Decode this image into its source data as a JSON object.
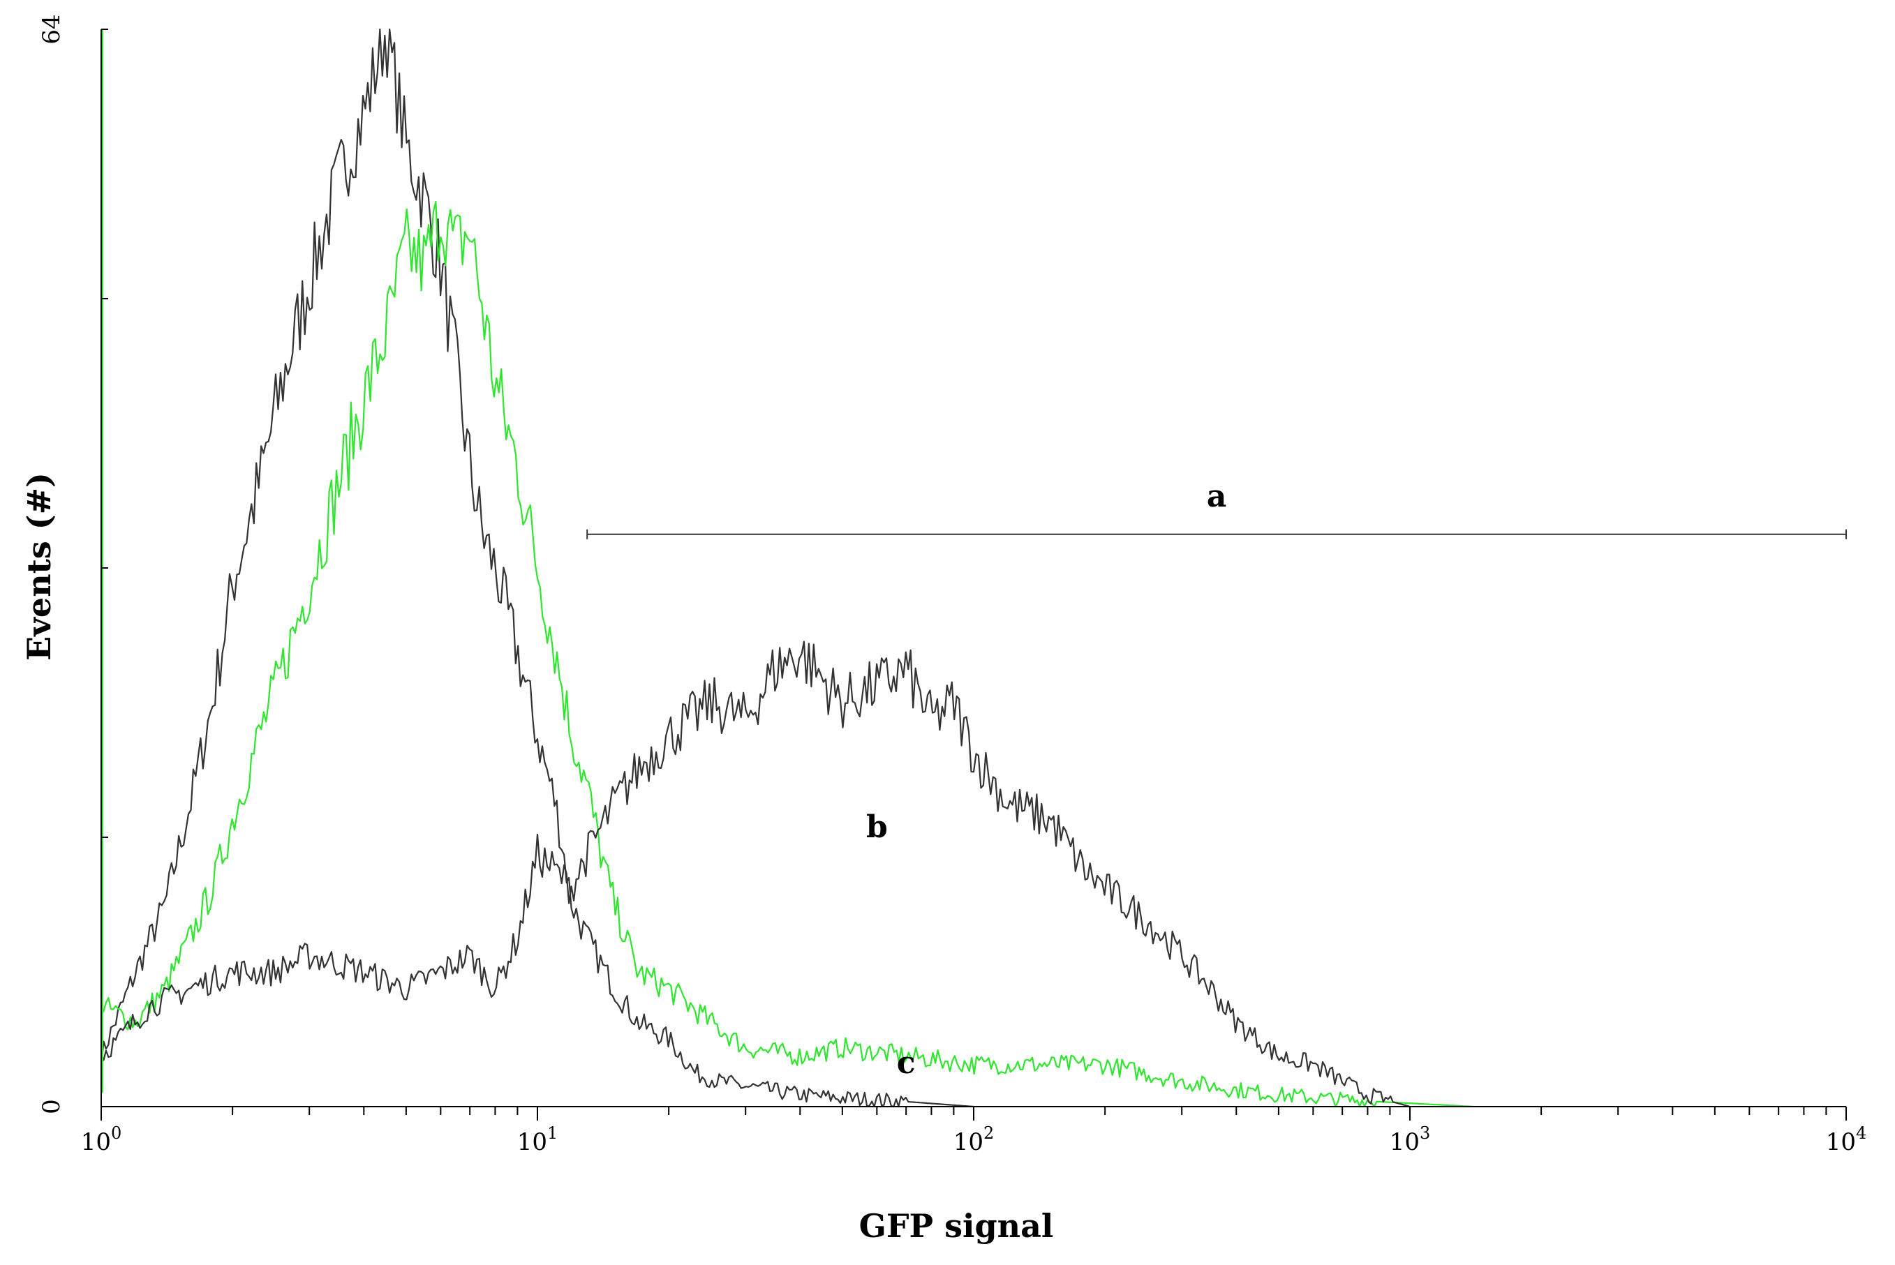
{
  "chart_data": {
    "type": "line",
    "xlabel": "GFP signal",
    "ylabel": "Events (#)",
    "x_scale": "log",
    "xlim": [
      1,
      10000
    ],
    "ylim": [
      0,
      64
    ],
    "y_ticks": [
      0,
      16,
      32,
      48,
      64
    ],
    "y_tick_labels": [
      "0",
      "",
      "",
      "",
      "64"
    ],
    "x_ticks": [
      1,
      10,
      100,
      1000,
      10000
    ],
    "x_tick_labels": [
      {
        "base": "10",
        "exp": "0"
      },
      {
        "base": "10",
        "exp": "1"
      },
      {
        "base": "10",
        "exp": "2"
      },
      {
        "base": "10",
        "exp": "3"
      },
      {
        "base": "10",
        "exp": "4"
      }
    ],
    "grid": false,
    "colors": {
      "control": "#333333",
      "sample_b": "#333333",
      "sample_c": "#2ee62e"
    },
    "gate": {
      "label": "a",
      "x_start": 13,
      "x_end": 10000,
      "y": 34
    },
    "annotations": [
      {
        "text": "b",
        "x": 60,
        "y": 16
      },
      {
        "text": "c",
        "x": 70,
        "y": 2
      }
    ],
    "series": [
      {
        "key": "control",
        "color": "#333333",
        "x": [
          1.0,
          1.2,
          1.4,
          1.6,
          1.8,
          2.0,
          2.3,
          2.6,
          3.0,
          3.5,
          4.0,
          4.5,
          5.0,
          5.5,
          6.0,
          6.5,
          7.0,
          7.5,
          8.0,
          9.0,
          10.0,
          11.0,
          12.0,
          13.0,
          15.0,
          17.0,
          20.0,
          23.0,
          26.0,
          30.0,
          40.0,
          50.0,
          70.0,
          100.0
        ],
        "y": [
          3,
          8,
          12,
          18,
          24,
          31,
          37,
          43,
          49,
          55,
          59,
          64,
          57,
          54,
          50,
          44,
          38,
          34,
          32,
          27,
          22,
          18,
          12,
          10,
          7,
          5,
          4,
          2,
          1.5,
          1.2,
          0.7,
          0.5,
          0.3,
          0
        ]
      },
      {
        "key": "sample_c",
        "color": "#2ee62e",
        "x": [
          1.0,
          1.2,
          1.4,
          1.6,
          1.8,
          2.0,
          2.3,
          2.6,
          3.0,
          3.5,
          4.0,
          4.5,
          5.0,
          5.5,
          6.0,
          6.5,
          7.0,
          8.0,
          9.0,
          10.0,
          11.0,
          12.0,
          13.0,
          14.0,
          15.0,
          17.0,
          20.0,
          25.0,
          30.0,
          40.0,
          50.0,
          70.0,
          100.0,
          150.0,
          200.0,
          300.0,
          400.0,
          500.0,
          700.0,
          1000.0,
          1400.0
        ],
        "y": [
          6,
          5,
          7,
          10,
          13,
          17,
          22,
          26,
          31,
          37,
          42,
          46,
          51,
          50,
          53,
          51,
          52,
          43,
          38,
          32,
          27,
          22,
          19,
          15,
          12,
          8,
          7,
          5,
          3.5,
          3,
          3.5,
          3,
          2.5,
          2.5,
          2.5,
          1.5,
          1,
          0.7,
          0.4,
          0.2,
          0
        ]
      },
      {
        "key": "sample_b",
        "color": "#333333",
        "x": [
          1.0,
          1.3,
          1.6,
          2.0,
          2.5,
          3.0,
          4.0,
          5.0,
          6.0,
          7.0,
          8.0,
          9.0,
          10.0,
          11.0,
          12.0,
          13.0,
          15.0,
          17.0,
          20.0,
          25.0,
          30.0,
          35.0,
          40.0,
          50.0,
          60.0,
          70.0,
          80.0,
          90.0,
          100.0,
          120.0,
          150.0,
          180.0,
          200.0,
          250.0,
          300.0,
          350.0,
          400.0,
          500.0,
          600.0,
          700.0,
          800.0,
          1000.0
        ],
        "y": [
          3,
          6,
          7,
          8,
          8,
          9,
          8,
          7,
          8,
          9,
          7,
          10,
          15,
          14,
          13,
          15,
          18,
          20,
          22,
          24,
          23,
          26,
          27,
          24,
          25,
          26,
          23,
          24,
          21,
          18,
          17,
          14,
          13,
          11,
          9,
          7,
          5,
          3,
          2.5,
          1.5,
          0.7,
          0
        ]
      }
    ]
  }
}
